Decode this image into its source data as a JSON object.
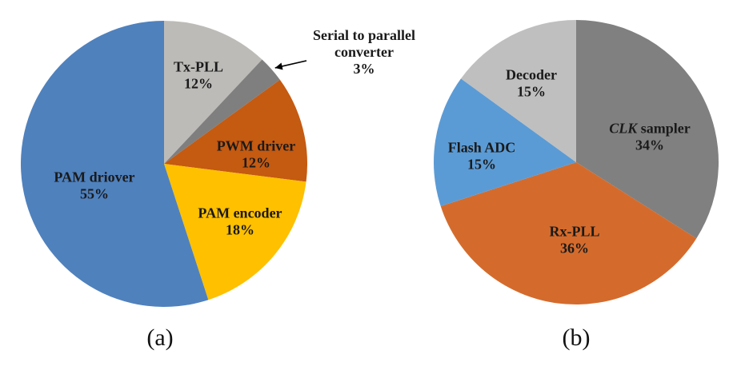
{
  "chart_data": [
    {
      "type": "pie",
      "caption": "(a)",
      "slices": [
        {
          "label": "Tx-PLL",
          "value": 12,
          "color": "#bdbbb8",
          "label_lines": [
            "Tx-PLL",
            "12%"
          ]
        },
        {
          "label": "Serial to parallel converter",
          "value": 3,
          "color": "#7f7f7f",
          "label_lines": [
            "Serial to parallel",
            "converter",
            "3%"
          ],
          "external": true
        },
        {
          "label": "PWM driver",
          "value": 12,
          "color": "#c55a11",
          "label_lines": [
            "PWM driver",
            "12%"
          ]
        },
        {
          "label": "PAM encoder",
          "value": 18,
          "color": "#ffc000",
          "label_lines": [
            "PAM encoder",
            "18%"
          ]
        },
        {
          "label": "PAM driover",
          "value": 55,
          "color": "#4f81bd",
          "label_lines": [
            "PAM driover",
            "55%"
          ]
        }
      ]
    },
    {
      "type": "pie",
      "caption": "(b)",
      "slices": [
        {
          "label": "CLK sampler",
          "value": 34,
          "color": "#808080",
          "label_lines": [
            "CLK sampler",
            "34%"
          ],
          "italic_prefix": "CLK"
        },
        {
          "label": "Rx-PLL",
          "value": 36,
          "color": "#d46b2c",
          "label_lines": [
            "Rx-PLL",
            "36%"
          ]
        },
        {
          "label": "Flash ADC",
          "value": 15,
          "color": "#5b9bd5",
          "label_lines": [
            "Flash ADC",
            "15%"
          ]
        },
        {
          "label": "Decoder",
          "value": 15,
          "color": "#bfbfbf",
          "label_lines": [
            "Decoder",
            "15%"
          ]
        }
      ]
    }
  ]
}
